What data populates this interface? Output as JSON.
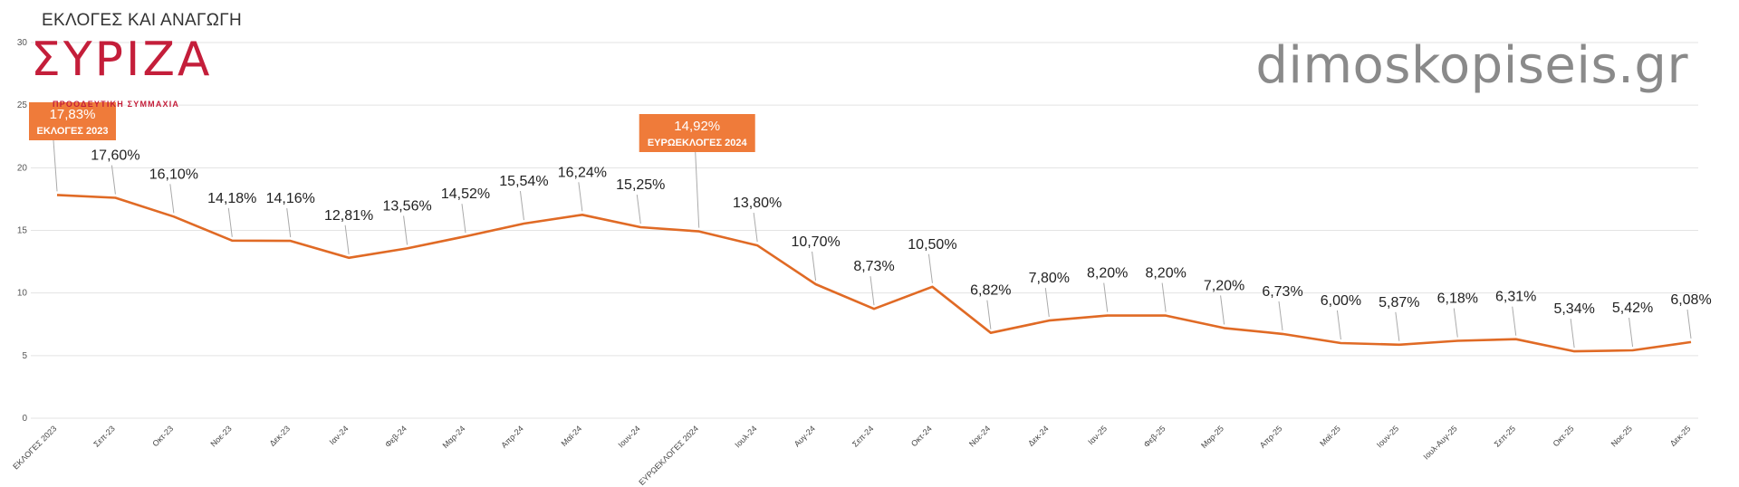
{
  "page": {
    "title": "ΕΚΛΟΓΕΣ ΚΑΙ ΑΝΑΓΩΓΗ",
    "watermark": "dimoskopiseis.gr"
  },
  "logo": {
    "mark": "ΣΥΡΙΖΑ",
    "subtitle": "ΠΡΟΟΔΕΥΤΙΚΗ ΣΥΜΜΑΧΙΑ"
  },
  "colors": {
    "line": "#e06a25",
    "callout": "#ef7b3a",
    "grid": "#e3e3e3",
    "leader": "#aaaaaa",
    "logo": "#c41e3a"
  },
  "chart_data": {
    "type": "line",
    "title": "ΕΚΛΟΓΕΣ ΚΑΙ ΑΝΑΓΩΓΗ",
    "xlabel": "",
    "ylabel": "",
    "ylim": [
      0,
      30
    ],
    "yticks": [
      0,
      5,
      10,
      15,
      20,
      25,
      30
    ],
    "grid": true,
    "categories": [
      "ΕΚΛΟΓΕΣ 2023",
      "Σεπ-23",
      "Οκτ-23",
      "Νοε-23",
      "Δεκ-23",
      "Ιαν-24",
      "Φεβ-24",
      "Μαρ-24",
      "Απρ-24",
      "Μαϊ-24",
      "Ιουν-24",
      "ΕΥΡΩΕΚΛΟΓΕΣ 2024",
      "Ιουλ-24",
      "Αυγ-24",
      "Σεπ-24",
      "Οκτ-24",
      "Νοε-24",
      "Δεκ-24",
      "Ιαν-25",
      "Φεβ-25",
      "Μαρ-25",
      "Απρ-25",
      "Μαϊ-25",
      "Ιουν-25",
      "Ιουλ-Αυγ-25",
      "Σεπ-25",
      "Οκτ-25",
      "Νοε-25",
      "Δεκ-25"
    ],
    "series": [
      {
        "name": "ΣΥΡΙΖΑ",
        "values": [
          17.83,
          17.6,
          16.1,
          14.18,
          14.16,
          12.81,
          13.56,
          14.52,
          15.54,
          16.24,
          15.25,
          14.92,
          13.8,
          10.7,
          8.73,
          10.5,
          6.82,
          7.8,
          8.2,
          8.2,
          7.2,
          6.73,
          6.0,
          5.87,
          6.18,
          6.31,
          5.34,
          5.42,
          6.08
        ],
        "labels": [
          "17,83%",
          "17,60%",
          "16,10%",
          "14,18%",
          "14,16%",
          "12,81%",
          "13,56%",
          "14,52%",
          "15,54%",
          "16,24%",
          "15,25%",
          "14,92%",
          "13,80%",
          "10,70%",
          "8,73%",
          "10,50%",
          "6,82%",
          "7,80%",
          "8,20%",
          "8,20%",
          "7,20%",
          "6,73%",
          "6,00%",
          "5,87%",
          "6,18%",
          "6,31%",
          "5,34%",
          "5,42%",
          "6,08%"
        ]
      }
    ],
    "callouts": [
      {
        "index": 0,
        "value_label": "17,83%",
        "text": "ΕΚΛΟΓΕΣ 2023"
      },
      {
        "index": 11,
        "value_label": "14,92%",
        "text": "ΕΥΡΩΕΚΛΟΓΕΣ 2024"
      }
    ]
  }
}
